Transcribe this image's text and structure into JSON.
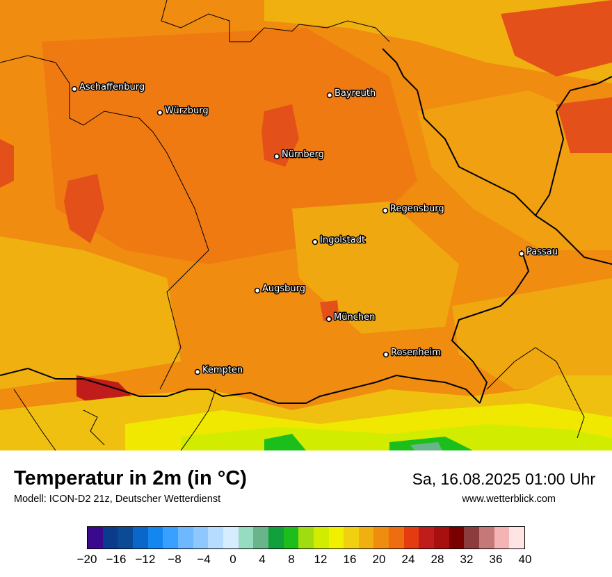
{
  "map": {
    "cities": [
      {
        "name": "Aschaffenburg"
      },
      {
        "name": "Würzburg"
      },
      {
        "name": "Bayreuth"
      },
      {
        "name": "Nürnberg"
      },
      {
        "name": "Regensburg"
      },
      {
        "name": "Ingolstadt"
      },
      {
        "name": "Passau"
      },
      {
        "name": "Augsburg"
      },
      {
        "name": "München"
      },
      {
        "name": "Rosenheim"
      },
      {
        "name": "Kempten"
      }
    ]
  },
  "header": {
    "title": "Temperatur in 2m (in °C)",
    "model": "Modell: ICON-D2 21z, Deutscher Wetterdienst",
    "datetime": "Sa, 16.08.2025 01:00 Uhr",
    "website": "www.wetterblick.com"
  },
  "legend": {
    "colors": [
      "#3b0a8c",
      "#0b3b8c",
      "#0b4a94",
      "#0a66c8",
      "#1486f0",
      "#3aa0ff",
      "#6eb8ff",
      "#8ec8ff",
      "#b6dcff",
      "#d6ecff",
      "#96dcc0",
      "#6ab48c",
      "#10a03c",
      "#1cbe1c",
      "#a0dc10",
      "#d2ec00",
      "#f0f000",
      "#f0d010",
      "#f0b010",
      "#f08c10",
      "#f06c10",
      "#e43c10",
      "#c01c1c",
      "#a81010",
      "#7a0000",
      "#8c3c3c",
      "#c47878",
      "#f4b4b4",
      "#ffe4e4"
    ],
    "ticks": [
      "−20",
      "−16",
      "−12",
      "−8",
      "−4",
      "0",
      "4",
      "8",
      "12",
      "16",
      "20",
      "24",
      "28",
      "32",
      "36",
      "40"
    ],
    "min": -20,
    "max": 40
  }
}
